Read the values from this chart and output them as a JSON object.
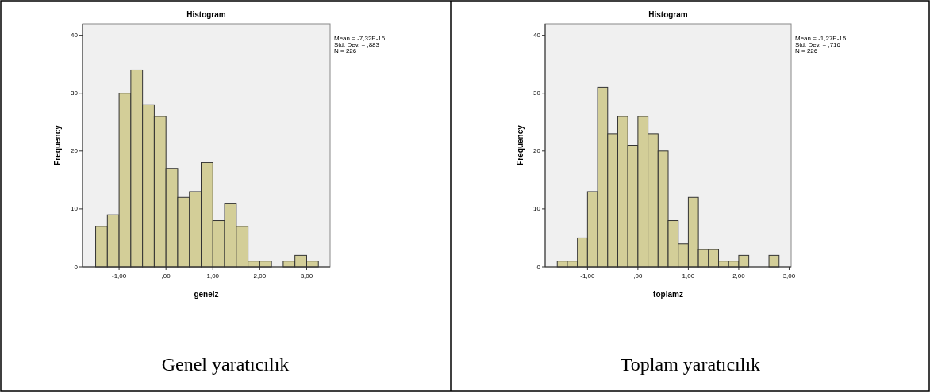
{
  "chart_data": [
    {
      "type": "histogram",
      "title": "Histogram",
      "xlabel": "genelz",
      "ylabel": "Frequency",
      "color": "#d3ce98",
      "bins": [
        -1.5,
        -1.25,
        -1,
        -0.75,
        -0.5,
        -0.25,
        0,
        0.25,
        0.5,
        0.75,
        1,
        1.25,
        1.5,
        1.75,
        2,
        2.25,
        2.5,
        2.75,
        3,
        3.25
      ],
      "values": [
        7,
        9,
        30,
        34,
        28,
        26,
        17,
        12,
        13,
        18,
        8,
        11,
        7,
        1,
        1,
        0,
        1,
        2,
        1
      ],
      "xlim": [
        -1.78,
        3.5
      ],
      "xticks": [
        {
          "value": -1,
          "label": "-1,00"
        },
        {
          "value": 0,
          "label": ",00"
        },
        {
          "value": 1,
          "label": "1,00"
        },
        {
          "value": 2,
          "label": "2,00"
        },
        {
          "value": 3,
          "label": "3,00"
        }
      ],
      "ylim": [
        0,
        42
      ],
      "yticks": [
        0,
        10,
        20,
        30,
        40
      ],
      "grid": false,
      "annotations": [
        "Mean = -7,32E-16",
        "Std. Dev. = ,883",
        "N = 226",
        "Genel yaratıcılık"
      ]
    },
    {
      "type": "histogram",
      "title": "Histogram",
      "xlabel": "toplamz",
      "ylabel": "Frequency",
      "color": "#d3ce98",
      "bins": [
        -1.6,
        -1.4,
        -1.2,
        -1,
        -0.8,
        -0.6,
        -0.4,
        -0.2,
        0,
        0.2,
        0.4,
        0.6,
        0.8,
        1,
        1.2,
        1.4,
        1.6,
        1.8,
        2,
        2.2,
        2.4,
        2.6,
        2.8
      ],
      "values": [
        1,
        1,
        5,
        13,
        31,
        23,
        26,
        21,
        26,
        23,
        20,
        8,
        4,
        12,
        3,
        3,
        1,
        1,
        2,
        0,
        0,
        2
      ],
      "xlim": [
        -1.84,
        3.04
      ],
      "xticks": [
        {
          "value": -1,
          "label": "-1,00"
        },
        {
          "value": 0,
          "label": ",00"
        },
        {
          "value": 1,
          "label": "1,00"
        },
        {
          "value": 2,
          "label": "2,00"
        },
        {
          "value": 3,
          "label": "3,00"
        }
      ],
      "ylim": [
        0,
        42
      ],
      "yticks": [
        0,
        10,
        20,
        30,
        40
      ],
      "grid": false,
      "annotations": [
        "Mean = -1,27E-15",
        "Std. Dev. = ,716",
        "N = 226",
        "Toplam yaratıcılık"
      ]
    }
  ]
}
